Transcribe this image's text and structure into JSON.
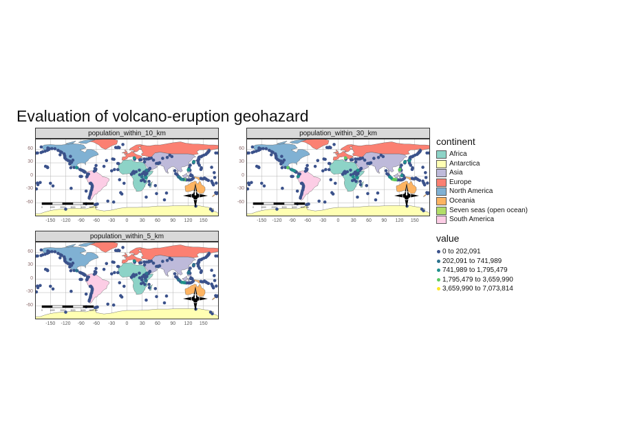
{
  "title": "Evaluation of volcano-eruption geohazard",
  "colors": {
    "Africa": "#8dd3c7",
    "Antarctica": "#ffffb3",
    "Asia": "#bebada",
    "Europe": "#fb8072",
    "North America": "#80b1d3",
    "Oceania": "#fdb462",
    "Seven seas (open ocean)": "#b3de69",
    "South America": "#fccde5",
    "value": [
      "#3b528b",
      "#2c728e",
      "#21908d",
      "#5dc962",
      "#fde725"
    ]
  },
  "axes": {
    "y_ticks": [
      "60",
      "30",
      "0",
      "-30",
      "-60"
    ],
    "x_ticks": [
      "-150",
      "-120",
      "-90",
      "-60",
      "-30",
      "0",
      "30",
      "60",
      "90",
      "120",
      "150"
    ],
    "xlim": [
      -180,
      180
    ],
    "ylim": [
      -90,
      84
    ]
  },
  "panels": [
    {
      "label": "population_within_10_km"
    },
    {
      "label": "population_within_30_km"
    },
    {
      "label": "population_within_5_km"
    }
  ],
  "scale_bar_labels": [
    "0",
    "1000",
    "2000",
    "3000",
    "4000",
    "5000 km"
  ],
  "legend": {
    "continent_title": "continent",
    "continents": [
      "Africa",
      "Antarctica",
      "Asia",
      "Europe",
      "North America",
      "Oceania",
      "Seven seas (open ocean)",
      "South America"
    ],
    "value_title": "value",
    "value_bins": [
      "0 to 202,091",
      "202,091 to 741,989",
      "741,989 to 1,795,479",
      "1,795,479 to 3,659,990",
      "3,659,990 to 7,073,814"
    ]
  },
  "volcanoes": [
    [
      -155.3,
      19.4
    ],
    [
      -155.6,
      19.5
    ],
    [
      -156.1,
      20.7
    ],
    [
      -159.5,
      22.1
    ],
    [
      -168.3,
      53.0
    ],
    [
      -175.2,
      52.0
    ],
    [
      -178.0,
      51.8
    ],
    [
      -165.0,
      54.8
    ],
    [
      -160.5,
      55.9
    ],
    [
      -156.0,
      57.8
    ],
    [
      -153.0,
      59.8
    ],
    [
      -152.0,
      61.3
    ],
    [
      -147.0,
      61.8
    ],
    [
      -141.0,
      61.5
    ],
    [
      -135.0,
      58.0
    ],
    [
      -130.5,
      55.0
    ],
    [
      -128.0,
      53.5
    ],
    [
      -123.0,
      50.0
    ],
    [
      -122.2,
      46.2
    ],
    [
      -121.7,
      45.4
    ],
    [
      -121.8,
      42.4
    ],
    [
      -121.5,
      40.5
    ],
    [
      -119.0,
      37.7
    ],
    [
      -116.0,
      35.5
    ],
    [
      -112.0,
      34.0
    ],
    [
      -110.7,
      44.4
    ],
    [
      -106.0,
      36.0
    ],
    [
      -108.5,
      31.0
    ],
    [
      -103.6,
      19.5
    ],
    [
      -98.6,
      19.0
    ],
    [
      -97.3,
      18.9
    ],
    [
      -92.0,
      15.0
    ],
    [
      -90.8,
      14.4
    ],
    [
      -89.6,
      13.8
    ],
    [
      -87.6,
      13.0
    ],
    [
      -86.2,
      12.1
    ],
    [
      -84.7,
      10.5
    ],
    [
      -83.8,
      9.9
    ],
    [
      -82.5,
      8.8
    ],
    [
      -77.4,
      4.9
    ],
    [
      -75.3,
      4.9
    ],
    [
      -77.4,
      1.2
    ],
    [
      -78.4,
      -0.7
    ],
    [
      -78.6,
      -1.5
    ],
    [
      -72.0,
      -16.3
    ],
    [
      -70.9,
      -15.8
    ],
    [
      -69.0,
      -18.2
    ],
    [
      -68.0,
      -21.3
    ],
    [
      -68.0,
      -24.0
    ],
    [
      -68.5,
      -26.6
    ],
    [
      -69.0,
      -30.2
    ],
    [
      -70.4,
      -33.4
    ],
    [
      -71.0,
      -36.9
    ],
    [
      -71.5,
      -39.4
    ],
    [
      -72.0,
      -42.0
    ],
    [
      -73.5,
      -45.9
    ],
    [
      -74.0,
      -49.0
    ],
    [
      -61.0,
      16.0
    ],
    [
      -61.2,
      14.8
    ],
    [
      -61.6,
      13.3
    ],
    [
      -62.7,
      17.2
    ],
    [
      -64.0,
      11.0
    ],
    [
      -60.5,
      24.0
    ],
    [
      -16.6,
      28.3
    ],
    [
      -18.0,
      28.6
    ],
    [
      -17.8,
      14.7
    ],
    [
      -24.4,
      14.9
    ],
    [
      -25.5,
      37.8
    ],
    [
      -28.0,
      38.6
    ],
    [
      -19.0,
      64.0
    ],
    [
      -17.0,
      65.0
    ],
    [
      -22.0,
      64.5
    ],
    [
      -15.0,
      64.0
    ],
    [
      -8.0,
      71.0
    ],
    [
      -14.4,
      -7.9
    ],
    [
      -12.3,
      -37.1
    ],
    [
      -10.0,
      -40.0
    ],
    [
      -5.7,
      -15.9
    ],
    [
      -37.5,
      -56.0
    ],
    [
      -26.0,
      -58.0
    ],
    [
      -30.0,
      12.0
    ],
    [
      -40.0,
      35.0
    ],
    [
      -45.0,
      22.0
    ],
    [
      14.4,
      40.8
    ],
    [
      15.0,
      37.7
    ],
    [
      15.2,
      38.8
    ],
    [
      25.4,
      36.4
    ],
    [
      27.4,
      36.6
    ],
    [
      8.7,
      4.2
    ],
    [
      9.2,
      4.2
    ],
    [
      14.0,
      6.5
    ],
    [
      18.0,
      10.0
    ],
    [
      24.3,
      13.5
    ],
    [
      35.9,
      3.5
    ],
    [
      37.1,
      11.8
    ],
    [
      38.5,
      13.0
    ],
    [
      40.7,
      13.6
    ],
    [
      36.4,
      0.3
    ],
    [
      36.5,
      -2.8
    ],
    [
      37.4,
      -3.1
    ],
    [
      29.2,
      -1.4
    ],
    [
      29.4,
      -1.5
    ],
    [
      39.0,
      6.0
    ],
    [
      35.3,
      6.0
    ],
    [
      39.4,
      10.2
    ],
    [
      42.0,
      12.5
    ],
    [
      44.0,
      15.5
    ],
    [
      45.0,
      17.5
    ],
    [
      47.7,
      40.6
    ],
    [
      44.3,
      39.7
    ],
    [
      43.3,
      40.1
    ],
    [
      42.4,
      38.7
    ],
    [
      38.5,
      38.5
    ],
    [
      34.5,
      32.0
    ],
    [
      34.0,
      38.5
    ],
    [
      11.0,
      8.0
    ],
    [
      13.0,
      10.5
    ],
    [
      30.0,
      5.0
    ],
    [
      33.0,
      9.0
    ],
    [
      25.0,
      3.0
    ],
    [
      28.0,
      -10.0
    ],
    [
      32.0,
      -8.0
    ],
    [
      35.0,
      -12.0
    ],
    [
      43.3,
      -11.8
    ],
    [
      55.7,
      -21.2
    ],
    [
      44.0,
      -19.0
    ],
    [
      37.7,
      -46.9
    ],
    [
      58.0,
      -39.0
    ],
    [
      77.5,
      -37.8
    ],
    [
      73.5,
      -53.1
    ],
    [
      52.0,
      35.9
    ],
    [
      57.8,
      28.5
    ],
    [
      61.2,
      28.0
    ],
    [
      61.0,
      29.0
    ],
    [
      64.0,
      30.0
    ],
    [
      70.0,
      40.0
    ],
    [
      79.0,
      42.0
    ],
    [
      84.0,
      47.0
    ],
    [
      88.0,
      44.0
    ],
    [
      93.9,
      12.3
    ],
    [
      95.5,
      5.4
    ],
    [
      98.5,
      3.0
    ],
    [
      100.5,
      -0.4
    ],
    [
      101.3,
      -1.7
    ],
    [
      104.0,
      -4.0
    ],
    [
      105.4,
      -6.1
    ],
    [
      107.7,
      -7.2
    ],
    [
      110.4,
      -7.5
    ],
    [
      112.9,
      -7.9
    ],
    [
      114.0,
      -8.1
    ],
    [
      115.5,
      -8.3
    ],
    [
      116.5,
      -8.4
    ],
    [
      118.0,
      -8.2
    ],
    [
      121.5,
      -8.5
    ],
    [
      123.0,
      -8.5
    ],
    [
      124.5,
      -8.2
    ],
    [
      126.6,
      -7.5
    ],
    [
      128.0,
      -6.5
    ],
    [
      129.8,
      -4.5
    ],
    [
      127.3,
      1.4
    ],
    [
      127.9,
      0.8
    ],
    [
      124.7,
      1.3
    ],
    [
      125.4,
      2.8
    ],
    [
      123.7,
      13.3
    ],
    [
      121.0,
      15.1
    ],
    [
      120.4,
      14.0
    ],
    [
      122.0,
      18.5
    ],
    [
      124.0,
      24.5
    ],
    [
      130.6,
      31.6
    ],
    [
      130.9,
      31.9
    ],
    [
      131.1,
      32.9
    ],
    [
      138.7,
      35.4
    ],
    [
      139.5,
      34.7
    ],
    [
      140.0,
      36.7
    ],
    [
      141.0,
      38.0
    ],
    [
      140.5,
      40.5
    ],
    [
      141.4,
      42.6
    ],
    [
      143.0,
      43.4
    ],
    [
      145.5,
      43.6
    ],
    [
      147.0,
      45.0
    ],
    [
      150.5,
      47.0
    ],
    [
      154.5,
      48.8
    ],
    [
      156.0,
      50.5
    ],
    [
      157.5,
      52.0
    ],
    [
      158.7,
      53.3
    ],
    [
      159.5,
      54.5
    ],
    [
      160.6,
      56.1
    ],
    [
      161.0,
      57.5
    ],
    [
      145.0,
      15.0
    ],
    [
      145.7,
      17.0
    ],
    [
      145.8,
      18.8
    ],
    [
      142.0,
      24.5
    ],
    [
      140.0,
      29.0
    ],
    [
      139.5,
      32.5
    ],
    [
      130.5,
      29.8
    ],
    [
      145.0,
      -5.0
    ],
    [
      147.0,
      -6.0
    ],
    [
      150.5,
      -5.5
    ],
    [
      152.0,
      -4.2
    ],
    [
      154.7,
      -6.1
    ],
    [
      156.0,
      -7.5
    ],
    [
      159.5,
      -9.5
    ],
    [
      166.0,
      -11.0
    ],
    [
      167.5,
      -15.0
    ],
    [
      168.3,
      -16.5
    ],
    [
      169.5,
      -19.5
    ],
    [
      173.8,
      -37.0
    ],
    [
      175.6,
      -39.2
    ],
    [
      176.5,
      -38.0
    ],
    [
      177.2,
      -37.5
    ],
    [
      175.0,
      -15.5
    ],
    [
      -175.5,
      -15.5
    ],
    [
      -174.5,
      -19.0
    ],
    [
      -177.5,
      -28.5
    ],
    [
      -170.0,
      -14.3
    ],
    [
      171.0,
      8.0
    ],
    [
      166.0,
      20.0
    ],
    [
      174.0,
      52.0
    ],
    [
      178.0,
      52.0
    ],
    [
      -168.0,
      65.5
    ],
    [
      -62.0,
      -64.0
    ],
    [
      -58.0,
      -62.5
    ],
    [
      -60.0,
      -63.0
    ],
    [
      167.2,
      -77.5
    ],
    [
      164.0,
      -74.0
    ],
    [
      135.0,
      -67.0
    ],
    [
      -120.0,
      -74.0
    ],
    [
      -80.0,
      -62.0
    ],
    [
      172.0,
      -3.0
    ],
    [
      -155.0,
      63.0
    ],
    [
      -131.0,
      48.0
    ],
    [
      -150.0,
      -16.0
    ],
    [
      -145.0,
      -22.0
    ],
    [
      -110.0,
      19.0
    ],
    [
      -112.0,
      27.5
    ],
    [
      -80.0,
      -33.5
    ],
    [
      -109.3,
      -27.1
    ],
    [
      -91.5,
      -0.6
    ],
    [
      -89.0,
      -0.5
    ]
  ],
  "highlights": {
    "population_within_10_km": [
      [
        110.4,
        -7.5,
        4
      ],
      [
        112.9,
        -7.9,
        3
      ],
      [
        121.0,
        15.1,
        2
      ],
      [
        107.7,
        -7.2,
        2
      ],
      [
        14.4,
        40.8,
        2
      ],
      [
        -98.6,
        19.0,
        2
      ],
      [
        130.9,
        31.9,
        2
      ],
      [
        120.4,
        14.0,
        2
      ],
      [
        37.4,
        -3.1,
        2
      ],
      [
        29.2,
        -1.4,
        1
      ],
      [
        38.5,
        13.0,
        1
      ],
      [
        110.4,
        -7.3,
        1
      ],
      [
        106.5,
        -6.7,
        2
      ],
      [
        101.3,
        -1.7,
        1
      ],
      [
        104.0,
        -4.0,
        1
      ]
    ],
    "population_within_30_km": [
      [
        110.4,
        -7.5,
        4
      ],
      [
        107.7,
        -7.2,
        4
      ],
      [
        106.5,
        -6.7,
        3
      ],
      [
        121.0,
        15.1,
        3
      ],
      [
        120.4,
        14.0,
        3
      ],
      [
        112.9,
        -7.9,
        3
      ],
      [
        110.0,
        -7.8,
        3
      ],
      [
        14.4,
        40.8,
        3
      ],
      [
        -98.6,
        19.0,
        3
      ],
      [
        139.5,
        34.7,
        2
      ],
      [
        38.5,
        13.0,
        2
      ],
      [
        29.2,
        -1.4,
        2
      ],
      [
        -90.8,
        14.4,
        2
      ],
      [
        -86.2,
        12.1,
        2
      ],
      [
        -78.4,
        -0.7,
        2
      ],
      [
        130.9,
        31.9,
        2
      ],
      [
        124.7,
        1.3,
        2
      ],
      [
        101.3,
        -1.7,
        2
      ],
      [
        104.0,
        -4.0,
        2
      ],
      [
        37.4,
        -3.1,
        2
      ]
    ],
    "population_within_5_km": [
      [
        110.4,
        -7.5,
        3
      ],
      [
        112.9,
        -7.9,
        2
      ],
      [
        121.0,
        15.1,
        2
      ],
      [
        107.7,
        -7.2,
        2
      ],
      [
        14.4,
        40.8,
        2
      ],
      [
        -98.6,
        19.0,
        1
      ],
      [
        130.9,
        31.9,
        1
      ],
      [
        120.4,
        14.0,
        1
      ],
      [
        37.4,
        -3.1,
        1
      ],
      [
        38.5,
        13.0,
        1
      ],
      [
        101.3,
        -1.7,
        1
      ]
    ]
  }
}
